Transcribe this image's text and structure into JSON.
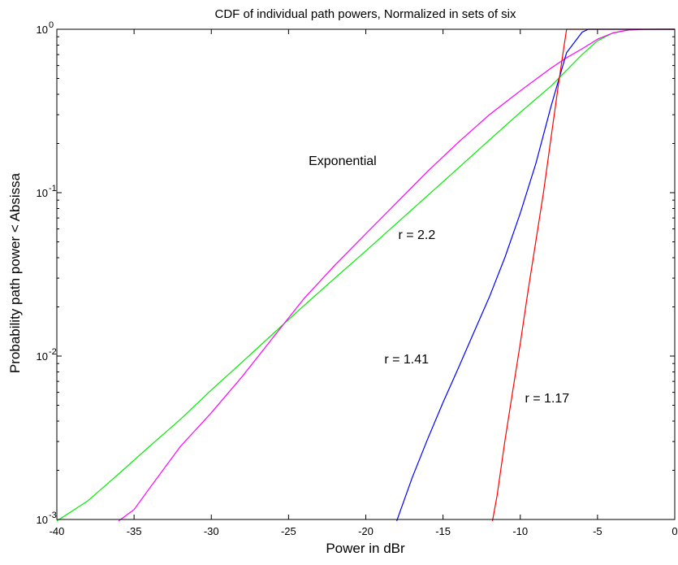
{
  "chart_data": {
    "type": "line",
    "title": "CDF of individual path powers, Normalized in sets of six",
    "xlabel": "Power in dBr",
    "ylabel": "Probability path power < Absissa",
    "xlim": [
      -40,
      0
    ],
    "ylim": [
      0.001,
      1
    ],
    "yscale": "log",
    "grid": false,
    "x_ticks": [
      -40,
      -35,
      -30,
      -25,
      -20,
      -15,
      -10,
      -5,
      0
    ],
    "x_tick_labels": [
      "-40",
      "-35",
      "-30",
      "-25",
      "-20",
      "-15",
      "-10",
      "-5",
      "0"
    ],
    "y_ticks": [
      {
        "value": 0.001,
        "base": "10",
        "exp": "-3"
      },
      {
        "value": 0.01,
        "base": "10",
        "exp": "-2"
      },
      {
        "value": 0.1,
        "base": "10",
        "exp": "-1"
      },
      {
        "value": 1,
        "base": "10",
        "exp": "0"
      }
    ],
    "annotations": [
      {
        "text": "Exponential",
        "x": -23.7,
        "y": 0.148
      },
      {
        "text": "r = 2.2",
        "x": -17.9,
        "y": 0.052
      },
      {
        "text": "r = 1.41",
        "x": -18.8,
        "y": 0.009
      },
      {
        "text": "r = 1.17",
        "x": -9.7,
        "y": 0.0052
      }
    ],
    "series": [
      {
        "color": "#00ee00",
        "x": [
          -40,
          -38,
          -36,
          -34,
          -32,
          -30,
          -28,
          -26,
          -24,
          -22,
          -20,
          -18,
          -16,
          -14,
          -12,
          -10,
          -8,
          -6,
          -5,
          -4,
          -3,
          -2,
          -1,
          0
        ],
        "y": [
          0.00098,
          0.0013,
          0.0019,
          0.0028,
          0.0041,
          0.0062,
          0.0092,
          0.0137,
          0.0204,
          0.03,
          0.044,
          0.065,
          0.096,
          0.142,
          0.21,
          0.31,
          0.45,
          0.7,
          0.85,
          0.95,
          0.99,
          0.998,
          1.0,
          1.0
        ]
      },
      {
        "color": "#ff00ff",
        "x": [
          -36,
          -35,
          -34,
          -32,
          -30,
          -28,
          -26,
          -24,
          -22,
          -20,
          -18,
          -16,
          -14,
          -12,
          -10,
          -8,
          -7,
          -6,
          -5,
          -4,
          -3,
          -2,
          -1,
          0
        ],
        "y": [
          0.00098,
          0.00115,
          0.00155,
          0.0028,
          0.0045,
          0.0075,
          0.013,
          0.0225,
          0.036,
          0.056,
          0.087,
          0.135,
          0.204,
          0.3,
          0.42,
          0.58,
          0.67,
          0.76,
          0.87,
          0.95,
          0.99,
          0.999,
          1.0,
          1.0
        ]
      },
      {
        "color": "#0000ff",
        "x": [
          -18,
          -17,
          -16,
          -15,
          -14,
          -13,
          -12,
          -11,
          -10,
          -9,
          -8,
          -7,
          -6,
          -5.6,
          -5,
          0
        ],
        "y": [
          0.00098,
          0.0018,
          0.0031,
          0.0052,
          0.0085,
          0.014,
          0.023,
          0.04,
          0.075,
          0.15,
          0.34,
          0.72,
          0.96,
          1.0,
          1.0,
          1.0
        ]
      },
      {
        "color": "#ff0000",
        "x": [
          -11.8,
          -11.5,
          -11,
          -10.5,
          -10,
          -9.5,
          -9,
          -8.5,
          -8,
          -7.5,
          -7.2,
          -7,
          0
        ],
        "y": [
          0.00098,
          0.0014,
          0.003,
          0.006,
          0.012,
          0.025,
          0.05,
          0.1,
          0.22,
          0.48,
          0.75,
          1.0,
          1.0
        ]
      }
    ]
  }
}
